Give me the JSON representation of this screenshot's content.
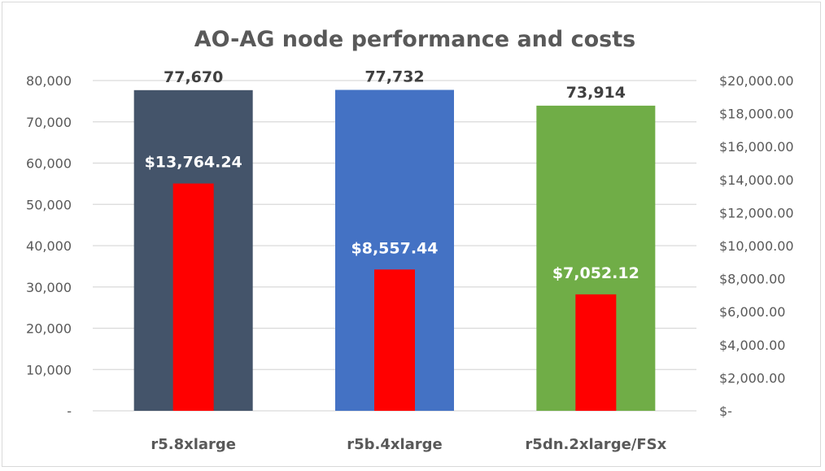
{
  "chart_data": {
    "type": "bar",
    "title": "AO-AG node performance and costs",
    "categories": [
      "r5.8xlarge",
      "r5b.4xlarge",
      "r5dn.2xlarge/FSx"
    ],
    "series": [
      {
        "axis": "left",
        "values": [
          77670,
          77732,
          73914
        ],
        "labels": [
          "77,670",
          "77,732",
          "73,914"
        ],
        "colors": [
          "#44546A",
          "#4472C4",
          "#70AD47"
        ]
      },
      {
        "axis": "right",
        "values": [
          13764.24,
          8557.44,
          7052.12
        ],
        "labels": [
          "$13,764.24",
          "$8,557.44",
          "$7,052.12"
        ],
        "color": "#FF0000"
      }
    ],
    "left_axis": {
      "ylim": [
        0,
        80000
      ],
      "ticks": [
        "-",
        "10,000",
        "20,000",
        "30,000",
        "40,000",
        "50,000",
        "60,000",
        "70,000",
        "80,000"
      ]
    },
    "right_axis": {
      "ylim": [
        0,
        20000
      ],
      "ticks": [
        "$-",
        "$2,000.00",
        "$4,000.00",
        "$6,000.00",
        "$8,000.00",
        "$10,000.00",
        "$12,000.00",
        "$14,000.00",
        "$16,000.00",
        "$18,000.00",
        "$20,000.00"
      ]
    },
    "grid": true,
    "legend": "none"
  }
}
